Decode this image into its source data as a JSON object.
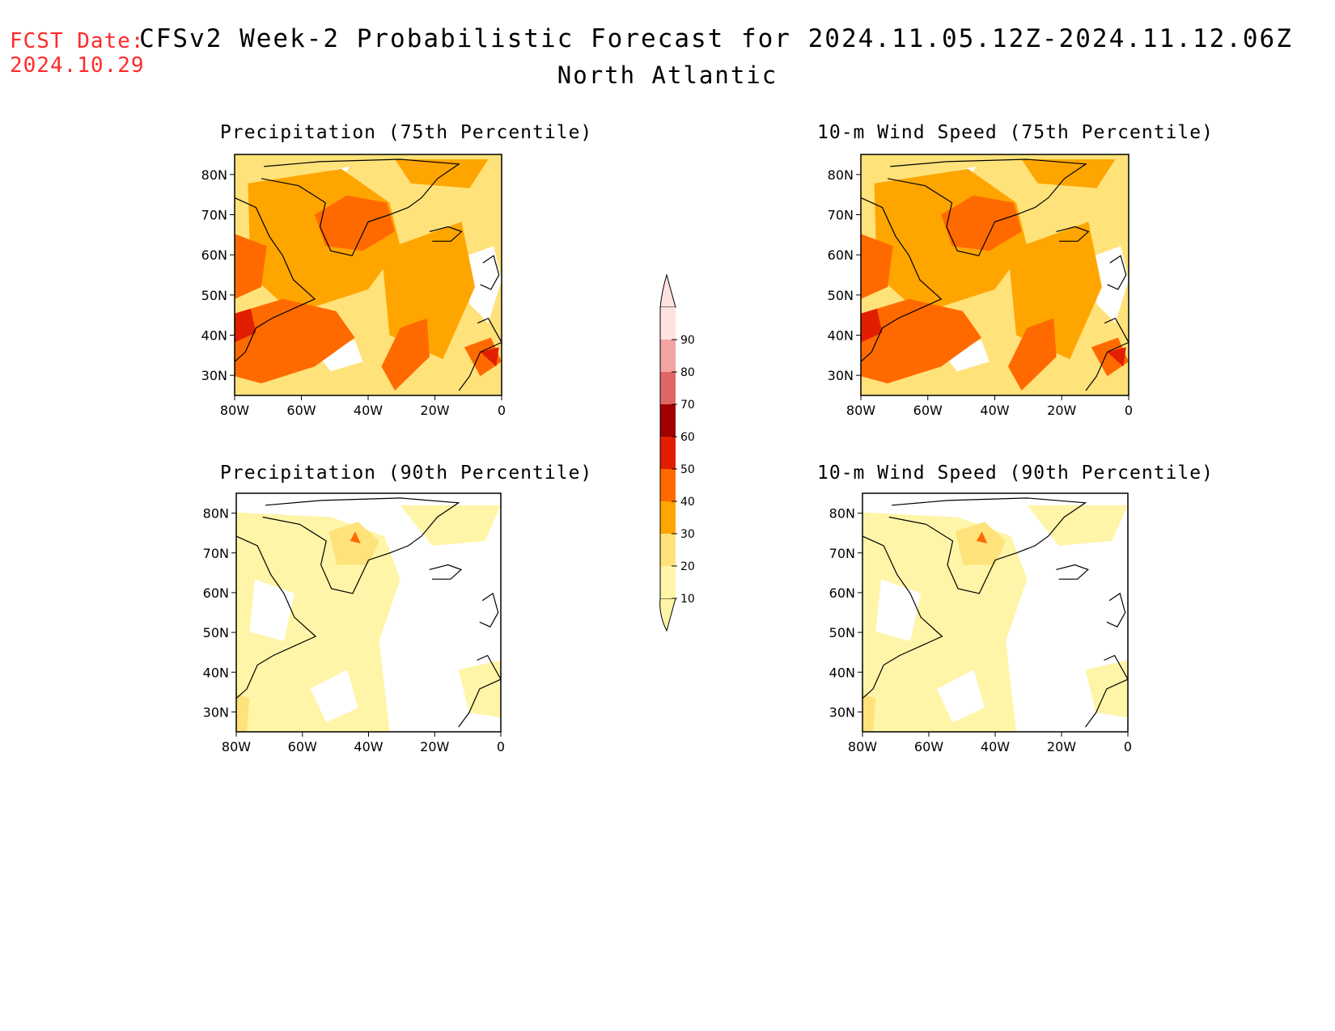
{
  "header": {
    "fcst_label": "FCST Date:",
    "fcst_date": "2024.10.29",
    "title": "CFSv2 Week-2 Probabilistic Forecast for 2024.11.05.12Z-2024.11.12.06Z",
    "subtitle": "North Atlantic"
  },
  "axes": {
    "lon_ticks": [
      "80W",
      "60W",
      "40W",
      "20W",
      "0"
    ],
    "lat_ticks": [
      "80N",
      "70N",
      "60N",
      "50N",
      "40N",
      "30N"
    ],
    "lon_range": [
      -80,
      0
    ],
    "lat_range": [
      25,
      85
    ]
  },
  "panels": [
    {
      "title": "Precipitation (75th Percentile)",
      "level": "high"
    },
    {
      "title": "10-m Wind Speed (75th Percentile)",
      "level": "high"
    },
    {
      "title": "Precipitation (90th Percentile)",
      "level": "low"
    },
    {
      "title": "10-m Wind Speed (90th Percentile)",
      "level": "low"
    }
  ],
  "colorbar": {
    "levels": [
      "10",
      "20",
      "30",
      "40",
      "50",
      "60",
      "70",
      "80",
      "90"
    ],
    "colors": [
      "#fff5a8",
      "#ffe27a",
      "#ffa500",
      "#ff6a00",
      "#e21e00",
      "#a00000",
      "#e06666",
      "#f4a3a3",
      "#ffe1e1"
    ]
  }
}
